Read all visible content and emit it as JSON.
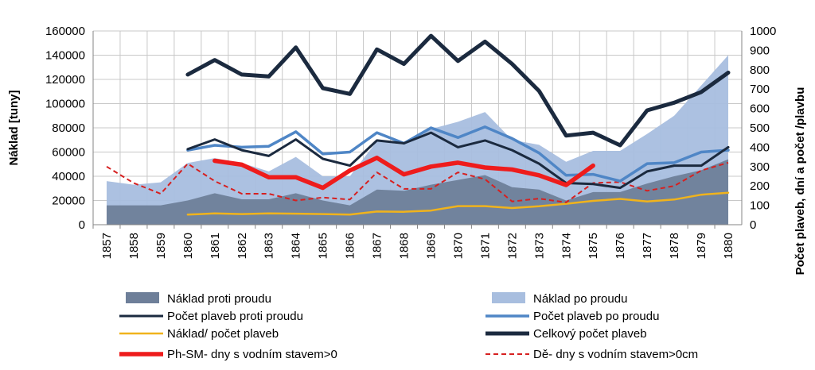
{
  "chart_data": {
    "type": "area+line",
    "title": "",
    "x": [
      "1857",
      "1858",
      "1859",
      "1860",
      "1861",
      "1862",
      "1863",
      "1864",
      "1865",
      "1866",
      "1867",
      "1868",
      "1869",
      "1870",
      "1871",
      "1872",
      "1873",
      "1874",
      "1875",
      "1876",
      "1877",
      "1878",
      "1879",
      "1880"
    ],
    "ylabel_left": "Náklad [tuny]",
    "ylabel_right": "Počet plaveb, dní  a počet /plavbu",
    "ylim_left": [
      0,
      160000
    ],
    "ylim_right": [
      0,
      1000
    ],
    "yticks_left": [
      "0",
      "20000",
      "40000",
      "60000",
      "80000",
      "100000",
      "120000",
      "140000",
      "160000"
    ],
    "yticks_right": [
      "0",
      "100",
      "200",
      "300",
      "400",
      "500",
      "600",
      "700",
      "800",
      "900",
      "1000"
    ],
    "grid": true,
    "legend_position": "bottom",
    "series": [
      {
        "name": "Náklad  proti proudu",
        "type": "area",
        "axis": "left",
        "color": "#6e7f99",
        "values": [
          16000,
          16000,
          16000,
          20000,
          26000,
          21000,
          21000,
          26000,
          20000,
          16000,
          29000,
          28000,
          33000,
          37000,
          41000,
          31000,
          29000,
          20000,
          27000,
          27000,
          34000,
          40000,
          45000,
          54000
        ]
      },
      {
        "name": "Náklad po proudu",
        "type": "area",
        "axis": "left",
        "color": "#a8bedf",
        "values": [
          36000,
          33000,
          35000,
          51000,
          55000,
          51000,
          44000,
          56000,
          40000,
          40000,
          69000,
          66000,
          79000,
          85000,
          93000,
          70000,
          66000,
          52000,
          61000,
          61000,
          75000,
          90000,
          115000,
          140000
        ]
      },
      {
        "name": "Počet plaveb proti proudu",
        "type": "line",
        "axis": "right",
        "color": "#1b2a3f",
        "width": 3,
        "values": [
          null,
          null,
          null,
          390,
          440,
          385,
          355,
          440,
          340,
          305,
          435,
          420,
          475,
          400,
          435,
          385,
          315,
          215,
          210,
          190,
          275,
          305,
          305,
          400
        ]
      },
      {
        "name": "Počet plaveb po proudu",
        "type": "line",
        "axis": "right",
        "color": "#4f86c6",
        "width": 3.5,
        "values": [
          null,
          null,
          null,
          385,
          410,
          400,
          405,
          480,
          365,
          375,
          475,
          420,
          500,
          450,
          505,
          445,
          370,
          255,
          260,
          225,
          315,
          320,
          375,
          385
        ]
      },
      {
        "name": "Náklad/ počet plaveb",
        "type": "line",
        "axis": "right",
        "color": "#f0b31c",
        "width": 2.5,
        "values": [
          null,
          null,
          null,
          52,
          58,
          55,
          58,
          57,
          55,
          52,
          68,
          67,
          73,
          96,
          96,
          86,
          95,
          108,
          123,
          133,
          120,
          130,
          155,
          165
        ]
      },
      {
        "name": "Celkový počet plaveb",
        "type": "line",
        "axis": "right",
        "color": "#1b2a3f",
        "width": 5,
        "values": [
          null,
          null,
          null,
          775,
          850,
          775,
          765,
          915,
          705,
          675,
          905,
          830,
          975,
          845,
          945,
          830,
          690,
          460,
          475,
          410,
          590,
          630,
          685,
          785
        ]
      },
      {
        "name": "Ph-SM- dny s vodním stavem>0",
        "type": "line",
        "axis": "right",
        "color": "#ee1c1c",
        "width": 5.5,
        "values": [
          null,
          null,
          null,
          null,
          330,
          310,
          245,
          245,
          190,
          280,
          345,
          260,
          300,
          320,
          295,
          285,
          255,
          205,
          305,
          null,
          null,
          null,
          null,
          null
        ]
      },
      {
        "name": "Dě- dny s vodním stavem>0cm",
        "type": "line",
        "axis": "right",
        "color": "#d62020",
        "width": 2,
        "dash": "6,4",
        "values": [
          300,
          215,
          160,
          315,
          225,
          160,
          160,
          125,
          140,
          130,
          270,
          185,
          185,
          270,
          235,
          120,
          135,
          115,
          215,
          220,
          175,
          200,
          280,
          320
        ]
      }
    ]
  }
}
